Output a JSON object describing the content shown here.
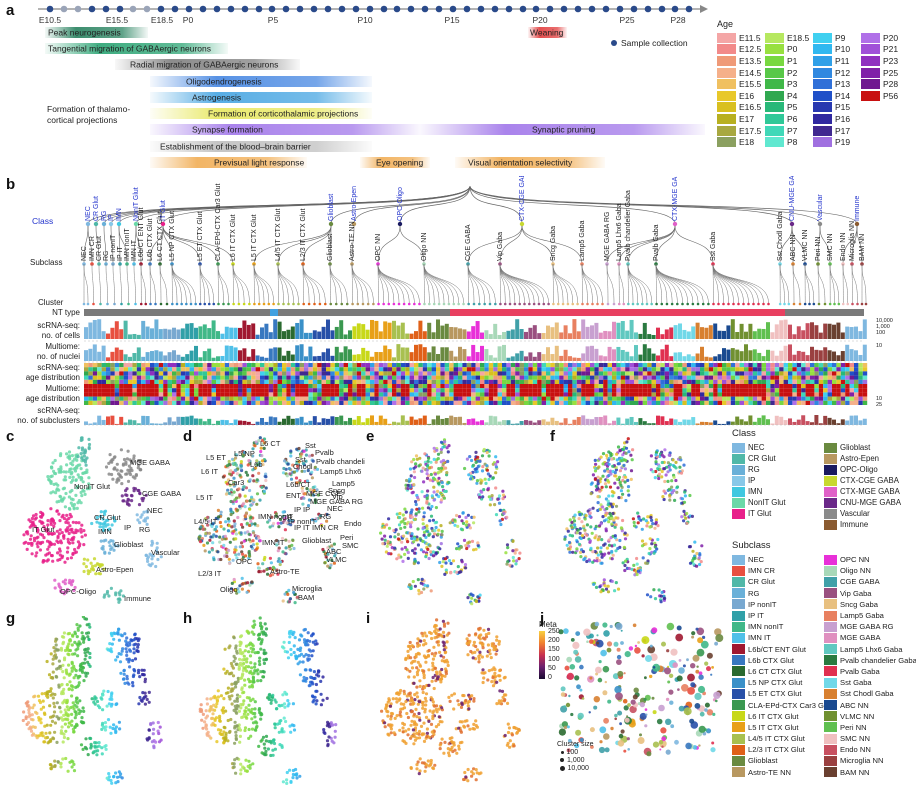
{
  "panels": {
    "a": "a",
    "b": "b",
    "c": "c",
    "d": "d",
    "e": "e",
    "f": "f",
    "g": "g",
    "h": "h",
    "i": "i",
    "j": "j"
  },
  "timeline": {
    "ticks": [
      {
        "label": "E10.5",
        "x": 50
      },
      {
        "label": "E15.5",
        "x": 117
      },
      {
        "label": "E18.5",
        "x": 162
      },
      {
        "label": "P0",
        "x": 188
      },
      {
        "label": "P5",
        "x": 273
      },
      {
        "label": "P10",
        "x": 365
      },
      {
        "label": "P15",
        "x": 452
      },
      {
        "label": "P20",
        "x": 540
      },
      {
        "label": "P25",
        "x": 627
      },
      {
        "label": "P28",
        "x": 678
      }
    ],
    "dots_gray": [
      62,
      76,
      131,
      146,
      585,
      600,
      613,
      640,
      654
    ],
    "sample_collection": "Sample collection",
    "events": [
      {
        "label": "Peak neurogenesis",
        "x1": 45,
        "x2": 148,
        "y": 27,
        "color": "#1a7a55",
        "text_x": 48
      },
      {
        "label": "Tangential migration of GABAergic neurons",
        "x1": 45,
        "x2": 228,
        "y": 43,
        "color": "#1d9e6a",
        "text_x": 48
      },
      {
        "label": "Radial migration of GABAergic neurons",
        "x1": 115,
        "x2": 300,
        "y": 59,
        "color": "#777777",
        "text_x": 130
      },
      {
        "label": "Oligodendrogenesis",
        "x1": 150,
        "x2": 372,
        "y": 76,
        "color": "#3a7fe0",
        "text_x": 186
      },
      {
        "label": "Astrogenesis",
        "x1": 150,
        "x2": 372,
        "y": 92,
        "color": "#3a9fe0",
        "text_x": 192
      },
      {
        "label": "Formation of corticothalamic projections",
        "x1": 150,
        "x2": 372,
        "y": 108,
        "color": "#e6e656",
        "text_x": 208
      },
      {
        "label": "Synapse formation",
        "x1": 150,
        "x2": 420,
        "y": 124,
        "color": "#9b6ee8",
        "text_x": 192
      },
      {
        "label": "Synaptic pruning",
        "x1": 420,
        "x2": 705,
        "y": 124,
        "color": "#9b6ee8",
        "text_x": 532
      },
      {
        "label": "Establishment of the blood–brain barrier",
        "x1": 150,
        "x2": 372,
        "y": 141,
        "color": "#bbbbbb",
        "text_x": 160
      },
      {
        "label": "Previsual light response",
        "x1": 150,
        "x2": 307,
        "y": 157,
        "color": "#f0a84a",
        "text_x": 214
      },
      {
        "label": "Eye opening",
        "x1": 360,
        "x2": 430,
        "y": 157,
        "color": "#f0a84a",
        "text_x": 376
      },
      {
        "label": "Visual orientation selectivity",
        "x1": 455,
        "x2": 605,
        "y": 157,
        "color": "#f0a84a",
        "text_x": 468
      },
      {
        "label": "Weaning",
        "x1": 528,
        "x2": 567,
        "y": 27,
        "color": "#e03030",
        "text_x": 530
      }
    ],
    "thalamo_line1": "Formation of thalamo-",
    "thalamo_line2": "cortical projections"
  },
  "age_legend": {
    "title": "Age",
    "items": [
      {
        "label": "E11.5",
        "color": "#f4a6a6"
      },
      {
        "label": "E12.5",
        "color": "#f28a8a"
      },
      {
        "label": "E13.5",
        "color": "#ef9a78"
      },
      {
        "label": "E14.5",
        "color": "#f5b08a"
      },
      {
        "label": "E15.5",
        "color": "#f0c060"
      },
      {
        "label": "E16",
        "color": "#e8c82a"
      },
      {
        "label": "E16.5",
        "color": "#d9c020"
      },
      {
        "label": "E17",
        "color": "#b8b020"
      },
      {
        "label": "E17.5",
        "color": "#a8a840"
      },
      {
        "label": "E18",
        "color": "#8ba060"
      },
      {
        "label": "",
        "color": ""
      },
      {
        "label": "E18.5",
        "color": "#b6e860"
      },
      {
        "label": "P0",
        "color": "#98e040"
      },
      {
        "label": "P1",
        "color": "#78d840"
      },
      {
        "label": "P2",
        "color": "#58c848"
      },
      {
        "label": "P3",
        "color": "#40b848"
      },
      {
        "label": "P4",
        "color": "#30a850"
      },
      {
        "label": "P5",
        "color": "#28b878"
      },
      {
        "label": "P6",
        "color": "#30c898"
      },
      {
        "label": "P7",
        "color": "#40d8b8"
      },
      {
        "label": "P8",
        "color": "#60e8d0"
      },
      {
        "label": "",
        "color": ""
      },
      {
        "label": "P9",
        "color": "#40d0f0"
      },
      {
        "label": "P10",
        "color": "#30b8f0"
      },
      {
        "label": "P11",
        "color": "#30a0e8"
      },
      {
        "label": "P12",
        "color": "#3088e0"
      },
      {
        "label": "P13",
        "color": "#3070d8"
      },
      {
        "label": "P14",
        "color": "#2050c8"
      },
      {
        "label": "P15",
        "color": "#2838b0"
      },
      {
        "label": "P16",
        "color": "#3028a0"
      },
      {
        "label": "P17",
        "color": "#402890"
      },
      {
        "label": "P19",
        "color": "#a070e0"
      },
      {
        "label": "",
        "color": ""
      },
      {
        "label": "P20",
        "color": "#b070e8"
      },
      {
        "label": "P21",
        "color": "#a050d8"
      },
      {
        "label": "P23",
        "color": "#9030c0"
      },
      {
        "label": "P25",
        "color": "#8020a8"
      },
      {
        "label": "P28",
        "color": "#701890"
      },
      {
        "label": "P56",
        "color": "#c81010"
      }
    ]
  },
  "tree": {
    "class_label": "Class",
    "subclass_label": "Subclass",
    "cluster_label": "Cluster",
    "row_labels": [
      {
        "text": "NT type",
        "y": 139
      },
      {
        "text": "scRNA-seq:",
        "y": 152
      },
      {
        "text": "no. of cells",
        "y": 162
      },
      {
        "text": "Multiome:",
        "y": 173
      },
      {
        "text": "no. of nuclei",
        "y": 183
      },
      {
        "text": "scRNA-seq:",
        "y": 194
      },
      {
        "text": "age distribution",
        "y": 204
      },
      {
        "text": "Multiome:",
        "y": 215
      },
      {
        "text": "age distribution",
        "y": 225
      },
      {
        "text": "scRNA-seq:",
        "y": 237
      },
      {
        "text": "no. of subclusters",
        "y": 247
      }
    ],
    "axis_right": [
      "10,000",
      "1,000",
      "100",
      "10",
      "10",
      "25"
    ],
    "classes": [
      {
        "label": "NEC",
        "x": 88
      },
      {
        "label": "CR Glut",
        "x": 96
      },
      {
        "label": "RG",
        "x": 104
      },
      {
        "label": "IP",
        "x": 111
      },
      {
        "label": "IMN",
        "x": 119
      },
      {
        "label": "NonIT Glut",
        "x": 136
      },
      {
        "label": "IT Glut",
        "x": 163
      },
      {
        "label": "Glioblast",
        "x": 331
      },
      {
        "label": "Astro-Epen",
        "x": 354
      },
      {
        "label": "OPC-Oligo",
        "x": 400
      },
      {
        "label": "CTX-CGE GABA",
        "x": 522
      },
      {
        "label": "CTX-MGE GABA",
        "x": 675
      },
      {
        "label": "CNU-MGE GABA",
        "x": 792
      },
      {
        "label": "Vascular",
        "x": 820
      },
      {
        "label": "Immune",
        "x": 857
      }
    ],
    "subclasses": [
      {
        "label": "NEC",
        "x": 84
      },
      {
        "label": "IMN CR",
        "x": 92
      },
      {
        "label": "CR Glut",
        "x": 99
      },
      {
        "label": "RG",
        "x": 106
      },
      {
        "label": "IP nonIT",
        "x": 113
      },
      {
        "label": "IP IT",
        "x": 120
      },
      {
        "label": "IMN nonIT",
        "x": 127
      },
      {
        "label": "IMN IT",
        "x": 134
      },
      {
        "label": "L6b/CT ENT Glut",
        "x": 141
      },
      {
        "label": "L6b CTX Glut",
        "x": 150
      },
      {
        "label": "L6 CT CTX Glut",
        "x": 160
      },
      {
        "label": "L5 NP CTX Glut",
        "x": 172
      },
      {
        "label": "L5 ET CTX Glut",
        "x": 200
      },
      {
        "label": "CLA-EPd-CTX Car3 Glut",
        "x": 218
      },
      {
        "label": "L6 IT CTX Glut",
        "x": 233
      },
      {
        "label": "L5 IT CTX Glut",
        "x": 254
      },
      {
        "label": "L4/5 IT CTX Glut",
        "x": 278
      },
      {
        "label": "L2/3 IT CTX Glut",
        "x": 303
      },
      {
        "label": "Glioblast",
        "x": 330
      },
      {
        "label": "Astro-TE NN",
        "x": 352
      },
      {
        "label": "OPC NN",
        "x": 378
      },
      {
        "label": "Oligo NN",
        "x": 424
      },
      {
        "label": "CGE GABA",
        "x": 468
      },
      {
        "label": "Vip Gaba",
        "x": 500
      },
      {
        "label": "Sncg Gaba",
        "x": 553
      },
      {
        "label": "Lamp5 Gaba",
        "x": 582
      },
      {
        "label": "MGE GABA RG",
        "x": 607
      },
      {
        "label": "Lamp5 Lhx6 Gaba",
        "x": 619
      },
      {
        "label": "Pvalb chandelier Gaba",
        "x": 628
      },
      {
        "label": "Pvalb Gaba",
        "x": 656
      },
      {
        "label": "Sst Gaba",
        "x": 713
      },
      {
        "label": "Sst Chodl Gaba",
        "x": 780
      },
      {
        "label": "ABC NN",
        "x": 793
      },
      {
        "label": "VLMC NN",
        "x": 805
      },
      {
        "label": "Peri NN",
        "x": 818
      },
      {
        "label": "SMC NN",
        "x": 830
      },
      {
        "label": "Endo NN",
        "x": 843
      },
      {
        "label": "Microglia NN",
        "x": 852
      },
      {
        "label": "BAM NN",
        "x": 862
      }
    ]
  },
  "umap_c_labels": [
    {
      "text": "NonIT Glut",
      "x": 60,
      "y": 53
    },
    {
      "text": "MGE GABA",
      "x": 116,
      "y": 29
    },
    {
      "text": "CGE GABA",
      "x": 128,
      "y": 60
    },
    {
      "text": "CR Glut",
      "x": 80,
      "y": 84
    },
    {
      "text": "NEC",
      "x": 133,
      "y": 77
    },
    {
      "text": "IT Glut",
      "x": 18,
      "y": 96
    },
    {
      "text": "IMN",
      "x": 84,
      "y": 98
    },
    {
      "text": "IP",
      "x": 110,
      "y": 94
    },
    {
      "text": "RG",
      "x": 125,
      "y": 96
    },
    {
      "text": "Glioblast",
      "x": 100,
      "y": 111
    },
    {
      "text": "Vascular",
      "x": 137,
      "y": 119
    },
    {
      "text": "Astro-Epen",
      "x": 82,
      "y": 136
    },
    {
      "text": "OPC-Oligo",
      "x": 46,
      "y": 158
    },
    {
      "text": "Immune",
      "x": 110,
      "y": 165
    }
  ],
  "umap_d_labels": [
    {
      "text": "L6 CT",
      "x": 70,
      "y": 10
    },
    {
      "text": "Sst",
      "x": 115,
      "y": 12
    },
    {
      "text": "L5 ET",
      "x": 16,
      "y": 24
    },
    {
      "text": "L5 NP",
      "x": 44,
      "y": 20
    },
    {
      "text": "Pvalb",
      "x": 125,
      "y": 19
    },
    {
      "text": "L6b",
      "x": 60,
      "y": 31
    },
    {
      "text": "Sst",
      "x": 105,
      "y": 26
    },
    {
      "text": "Chodl",
      "x": 103,
      "y": 33
    },
    {
      "text": "Pvalb chandelier",
      "x": 126,
      "y": 28
    },
    {
      "text": "L6 IT",
      "x": 11,
      "y": 38
    },
    {
      "text": "Lamp5 Lhx6",
      "x": 130,
      "y": 38
    },
    {
      "text": "Car3",
      "x": 38,
      "y": 49
    },
    {
      "text": "L6b/CT",
      "x": 96,
      "y": 51
    },
    {
      "text": "Lamp5",
      "x": 142,
      "y": 50
    },
    {
      "text": "Sncg",
      "x": 138,
      "y": 57
    },
    {
      "text": "L5 IT",
      "x": 6,
      "y": 64
    },
    {
      "text": "MGE CGE",
      "x": 116,
      "y": 60
    },
    {
      "text": "Vip",
      "x": 142,
      "y": 63
    },
    {
      "text": "ENT",
      "x": 96,
      "y": 62
    },
    {
      "text": "MGE GABA RG",
      "x": 120,
      "y": 68
    },
    {
      "text": "L4/5 IT",
      "x": 4,
      "y": 88
    },
    {
      "text": "IMN nonIT",
      "x": 68,
      "y": 83
    },
    {
      "text": "NEC",
      "x": 137,
      "y": 75
    },
    {
      "text": "IP IP",
      "x": 104,
      "y": 76
    },
    {
      "text": "CR",
      "x": 92,
      "y": 84
    },
    {
      "text": "IP nonIT",
      "x": 98,
      "y": 88
    },
    {
      "text": "RG",
      "x": 130,
      "y": 83
    },
    {
      "text": "Endo",
      "x": 154,
      "y": 90
    },
    {
      "text": "IP IT",
      "x": 104,
      "y": 94
    },
    {
      "text": "IMN CR",
      "x": 122,
      "y": 94
    },
    {
      "text": "Glioblast",
      "x": 112,
      "y": 107
    },
    {
      "text": "Peri",
      "x": 150,
      "y": 104
    },
    {
      "text": "SMC",
      "x": 152,
      "y": 112
    },
    {
      "text": "IMN IT",
      "x": 72,
      "y": 109
    },
    {
      "text": "ABC",
      "x": 136,
      "y": 118
    },
    {
      "text": "VLMC",
      "x": 136,
      "y": 126
    },
    {
      "text": "OPC",
      "x": 46,
      "y": 128
    },
    {
      "text": "Astro-TE",
      "x": 80,
      "y": 138
    },
    {
      "text": "L2/3 IT",
      "x": 8,
      "y": 140
    },
    {
      "text": "Microglia",
      "x": 102,
      "y": 155
    },
    {
      "text": "BAM",
      "x": 108,
      "y": 164
    },
    {
      "text": "Oligo",
      "x": 30,
      "y": 156
    }
  ],
  "class_legend": {
    "title": "Class",
    "items": [
      {
        "label": "NEC",
        "color": "#7fb8e0"
      },
      {
        "label": "CR Glut",
        "color": "#50b8a8"
      },
      {
        "label": "RG",
        "color": "#6ab0d8"
      },
      {
        "label": "IP",
        "color": "#88c8e8"
      },
      {
        "label": "IMN",
        "color": "#40c8e0"
      },
      {
        "label": "NonIT Glut",
        "color": "#6ad8a8"
      },
      {
        "label": "IT Glut",
        "color": "#e8208a"
      },
      {
        "label": "",
        "color": ""
      },
      {
        "label": "",
        "color": ""
      },
      {
        "label": "Glioblast",
        "color": "#6a8a40"
      },
      {
        "label": "Astro-Epen",
        "color": "#b89860"
      },
      {
        "label": "OPC-Oligo",
        "color": "#1a1a60"
      },
      {
        "label": "CTX-CGE GABA",
        "color": "#c8d830"
      },
      {
        "label": "CTX-MGE GABA",
        "color": "#e060c8"
      },
      {
        "label": "CNU-MGE GABA",
        "color": "#6a2888"
      },
      {
        "label": "Vascular",
        "color": "#8a8a8a"
      },
      {
        "label": "Immune",
        "color": "#8a5a30"
      },
      {
        "label": "",
        "color": ""
      }
    ]
  },
  "subclass_legend": {
    "title": "Subclass",
    "items": [
      {
        "label": "NEC",
        "color": "#7fb8e0"
      },
      {
        "label": "IMN CR",
        "color": "#e85040"
      },
      {
        "label": "CR Glut",
        "color": "#50b8a8"
      },
      {
        "label": "RG",
        "color": "#6ab0d8"
      },
      {
        "label": "IP nonIT",
        "color": "#78a8d0"
      },
      {
        "label": "IP IT",
        "color": "#30a0a8"
      },
      {
        "label": "IMN nonIT",
        "color": "#40b888"
      },
      {
        "label": "IMN IT",
        "color": "#50c0e8"
      },
      {
        "label": "L6b/CT ENT Glut",
        "color": "#a01830"
      },
      {
        "label": "L6b CTX Glut",
        "color": "#3878c0"
      },
      {
        "label": "L6 CT CTX Glut",
        "color": "#2a6a30"
      },
      {
        "label": "L5 NP CTX Glut",
        "color": "#3a90c8"
      },
      {
        "label": "L5 ET CTX Glut",
        "color": "#2850a8"
      },
      {
        "label": "CLA-EPd-CTX Car3 Glut",
        "color": "#3a9850"
      },
      {
        "label": "L6 IT CTX Glut",
        "color": "#c8d818"
      },
      {
        "label": "L5 IT CTX Glut",
        "color": "#e8a018"
      },
      {
        "label": "L4/5 IT CTX Glut",
        "color": "#a8c050"
      },
      {
        "label": "L2/3 IT CTX Glut",
        "color": "#e06018"
      },
      {
        "label": "Glioblast",
        "color": "#6a8a40"
      },
      {
        "label": "Astro-TE NN",
        "color": "#b89860"
      },
      {
        "label": "OPC NN",
        "color": "#e830d8"
      },
      {
        "label": "Oligo NN",
        "color": "#a8d8b8"
      },
      {
        "label": "CGE GABA",
        "color": "#40a0a8"
      },
      {
        "label": "Vip Gaba",
        "color": "#9a5080"
      },
      {
        "label": "Sncg Gaba",
        "color": "#e8c080"
      },
      {
        "label": "Lamp5 Gaba",
        "color": "#e88060"
      },
      {
        "label": "MGE GABA RG",
        "color": "#c8a0d0"
      },
      {
        "label": "MGE GABA",
        "color": "#e090c0"
      },
      {
        "label": "Lamp5 Lhx6 Gaba",
        "color": "#60c8c0"
      },
      {
        "label": "Pvalb chandelier Gaba",
        "color": "#2a7a40"
      },
      {
        "label": "Pvalb Gaba",
        "color": "#e03050"
      },
      {
        "label": "Sst Gaba",
        "color": "#70d8e8"
      },
      {
        "label": "Sst Chodl Gaba",
        "color": "#d88030"
      },
      {
        "label": "ABC NN",
        "color": "#1a4a90"
      },
      {
        "label": "VLMC NN",
        "color": "#709030"
      },
      {
        "label": "Peri NN",
        "color": "#60c050"
      },
      {
        "label": "SMC NN",
        "color": "#f0c0c0"
      },
      {
        "label": "Endo NN",
        "color": "#c85060"
      },
      {
        "label": "Microglia NN",
        "color": "#9a4040"
      },
      {
        "label": "BAM NN",
        "color": "#6a4030"
      }
    ]
  },
  "meta_legend": {
    "title": "Meta",
    "ticks": [
      "250",
      "200",
      "150",
      "100",
      "50",
      "0"
    ]
  },
  "size_legend": {
    "title": "Cluster size",
    "items": [
      "100",
      "1,000",
      "10,000"
    ]
  }
}
